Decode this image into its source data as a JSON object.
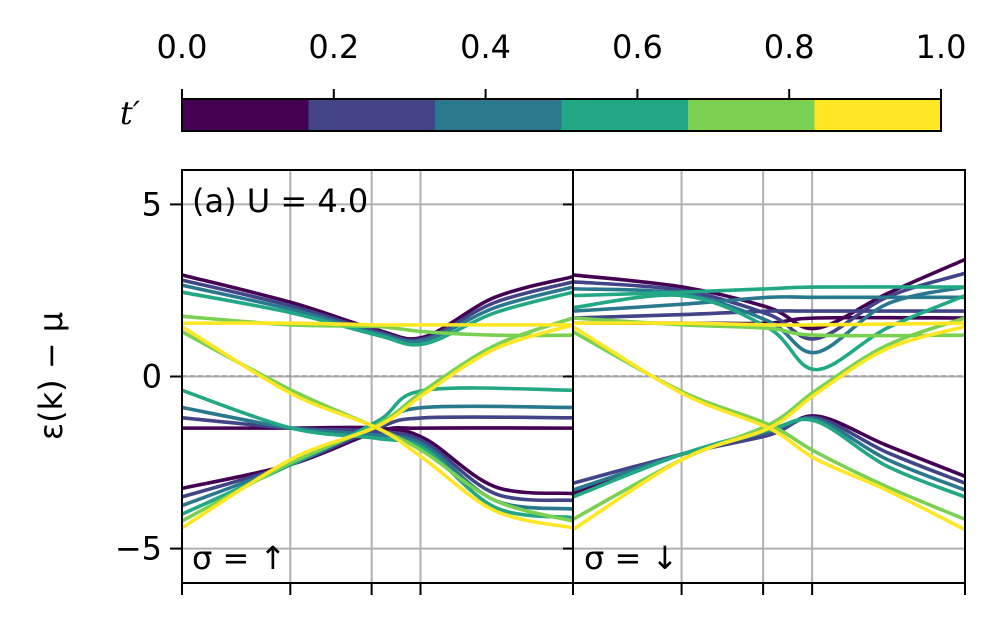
{
  "colorbar": {
    "label": "t′",
    "ticks": [
      "0.0",
      "0.2",
      "0.4",
      "0.6",
      "0.8",
      "1.0"
    ],
    "colors": [
      "#440154",
      "#414487",
      "#2a788e",
      "#22a884",
      "#7ad151",
      "#fde725"
    ]
  },
  "chart_data": [
    {
      "type": "line",
      "panel": "left",
      "ylabel": "ε(k) − μ",
      "ylim": [
        -6,
        6
      ],
      "yticks": [
        5,
        0,
        -5
      ],
      "xlim": [
        0,
        1
      ],
      "xticks": [
        0,
        0.277,
        0.485,
        0.61,
        1
      ],
      "grid": true,
      "annotation_top": "(a) U = 4.0",
      "annotation_bottom": "σ = ↑",
      "series": [
        {
          "param": 0.0,
          "color": "#440154",
          "bands": [
            [
              [
                0,
                2.95
              ],
              [
                0.28,
                2.15
              ],
              [
                0.5,
                1.35
              ],
              [
                0.62,
                1.15
              ],
              [
                0.8,
                2.3
              ],
              [
                1,
                2.9
              ]
            ],
            [
              [
                0,
                -3.25
              ],
              [
                0.28,
                -2.55
              ],
              [
                0.5,
                -1.6
              ],
              [
                0.62,
                -1.5
              ],
              [
                1,
                -1.5
              ]
            ],
            [
              [
                0,
                -1.5
              ],
              [
                0.28,
                -1.5
              ],
              [
                0.5,
                -1.5
              ],
              [
                0.62,
                -1.8
              ],
              [
                0.8,
                -3.2
              ],
              [
                1,
                -3.4
              ]
            ]
          ]
        },
        {
          "param": 0.2,
          "color": "#414487",
          "bands": [
            [
              [
                0,
                2.8
              ],
              [
                0.28,
                2.05
              ],
              [
                0.5,
                1.3
              ],
              [
                0.62,
                1.1
              ],
              [
                0.8,
                2.15
              ],
              [
                1,
                2.75
              ]
            ],
            [
              [
                0,
                -3.5
              ],
              [
                0.28,
                -2.55
              ],
              [
                0.5,
                -1.5
              ],
              [
                0.62,
                -1.2
              ],
              [
                1,
                -1.2
              ]
            ],
            [
              [
                0,
                -1.2
              ],
              [
                0.28,
                -1.5
              ],
              [
                0.5,
                -1.6
              ],
              [
                0.62,
                -1.9
              ],
              [
                0.8,
                -3.4
              ],
              [
                1,
                -3.6
              ]
            ]
          ]
        },
        {
          "param": 0.4,
          "color": "#2a788e",
          "bands": [
            [
              [
                0,
                2.65
              ],
              [
                0.28,
                1.95
              ],
              [
                0.5,
                1.25
              ],
              [
                0.62,
                1.05
              ],
              [
                0.8,
                2.0
              ],
              [
                1,
                2.6
              ]
            ],
            [
              [
                0,
                -3.75
              ],
              [
                0.28,
                -2.55
              ],
              [
                0.5,
                -1.4
              ],
              [
                0.62,
                -0.9
              ],
              [
                1,
                -0.9
              ]
            ],
            [
              [
                0,
                -0.9
              ],
              [
                0.28,
                -1.5
              ],
              [
                0.5,
                -1.7
              ],
              [
                0.62,
                -2.0
              ],
              [
                0.8,
                -3.6
              ],
              [
                1,
                -3.85
              ]
            ]
          ]
        },
        {
          "param": 0.6,
          "color": "#22a884",
          "bands": [
            [
              [
                0,
                2.45
              ],
              [
                0.28,
                1.85
              ],
              [
                0.5,
                1.2
              ],
              [
                0.62,
                0.95
              ],
              [
                0.8,
                1.85
              ],
              [
                1,
                2.45
              ]
            ],
            [
              [
                0,
                -4.0
              ],
              [
                0.28,
                -2.55
              ],
              [
                0.5,
                -1.3
              ],
              [
                0.62,
                -0.4
              ],
              [
                1,
                -0.4
              ]
            ],
            [
              [
                0,
                -0.4
              ],
              [
                0.28,
                -1.5
              ],
              [
                0.5,
                -1.8
              ],
              [
                0.62,
                -2.1
              ],
              [
                0.8,
                -3.8
              ],
              [
                1,
                -4.1
              ]
            ]
          ]
        },
        {
          "param": 0.8,
          "color": "#7ad151",
          "bands": [
            [
              [
                0,
                1.75
              ],
              [
                0.28,
                1.5
              ],
              [
                0.5,
                1.45
              ],
              [
                0.62,
                1.3
              ],
              [
                0.8,
                1.2
              ],
              [
                1,
                1.2
              ]
            ],
            [
              [
                0,
                1.3
              ],
              [
                0.28,
                -0.4
              ],
              [
                0.5,
                -1.5
              ],
              [
                0.62,
                -2.2
              ],
              [
                0.8,
                -3.6
              ],
              [
                1,
                -4.2
              ]
            ],
            [
              [
                0,
                -4.2
              ],
              [
                0.28,
                -2.5
              ],
              [
                0.5,
                -1.4
              ],
              [
                0.62,
                -0.4
              ],
              [
                0.8,
                0.9
              ],
              [
                1,
                1.7
              ]
            ]
          ]
        },
        {
          "param": 1.0,
          "color": "#fde725",
          "bands": [
            [
              [
                0,
                1.55
              ],
              [
                0.28,
                1.55
              ],
              [
                0.5,
                1.5
              ],
              [
                0.62,
                1.5
              ],
              [
                1,
                1.5
              ]
            ],
            [
              [
                0,
                1.45
              ],
              [
                0.28,
                -0.5
              ],
              [
                0.5,
                -1.5
              ],
              [
                0.62,
                -2.4
              ],
              [
                0.8,
                -3.9
              ],
              [
                1,
                -4.4
              ]
            ],
            [
              [
                0,
                -4.4
              ],
              [
                0.28,
                -2.4
              ],
              [
                0.5,
                -1.45
              ],
              [
                0.62,
                -0.5
              ],
              [
                0.8,
                0.8
              ],
              [
                1,
                1.5
              ]
            ]
          ]
        }
      ]
    },
    {
      "type": "line",
      "panel": "right",
      "ylim": [
        -6,
        6
      ],
      "xlim": [
        0,
        1
      ],
      "xticks": [
        0,
        0.277,
        0.485,
        0.61,
        1
      ],
      "grid": true,
      "annotation_bottom": "σ = ↓",
      "series": [
        {
          "param": 0.0,
          "color": "#440154",
          "bands": [
            [
              [
                0,
                2.95
              ],
              [
                0.28,
                2.6
              ],
              [
                0.5,
                2.0
              ],
              [
                0.62,
                1.4
              ],
              [
                0.8,
                2.4
              ],
              [
                1,
                3.4
              ]
            ],
            [
              [
                0,
                1.55
              ],
              [
                0.28,
                1.55
              ],
              [
                0.5,
                1.55
              ],
              [
                0.62,
                1.7
              ],
              [
                1,
                1.7
              ]
            ],
            [
              [
                0,
                -3.4
              ],
              [
                0.28,
                -2.25
              ],
              [
                0.5,
                -1.7
              ],
              [
                0.62,
                -1.15
              ],
              [
                0.8,
                -2.0
              ],
              [
                1,
                -2.9
              ]
            ]
          ]
        },
        {
          "param": 0.2,
          "color": "#414487",
          "bands": [
            [
              [
                0,
                2.75
              ],
              [
                0.28,
                2.5
              ],
              [
                0.5,
                1.8
              ],
              [
                0.62,
                1.1
              ],
              [
                0.8,
                2.3
              ],
              [
                1,
                3.0
              ]
            ],
            [
              [
                0,
                1.7
              ],
              [
                0.28,
                1.8
              ],
              [
                0.5,
                1.9
              ],
              [
                0.62,
                1.9
              ],
              [
                1,
                1.9
              ]
            ],
            [
              [
                0,
                -3.1
              ],
              [
                0.28,
                -2.25
              ],
              [
                0.5,
                -1.7
              ],
              [
                0.62,
                -1.2
              ],
              [
                0.8,
                -2.2
              ],
              [
                1,
                -3.1
              ]
            ]
          ]
        },
        {
          "param": 0.4,
          "color": "#2a788e",
          "bands": [
            [
              [
                0,
                2.55
              ],
              [
                0.28,
                2.4
              ],
              [
                0.5,
                1.6
              ],
              [
                0.62,
                0.7
              ],
              [
                0.8,
                2.1
              ],
              [
                1,
                2.6
              ]
            ],
            [
              [
                0,
                1.9
              ],
              [
                0.28,
                2.1
              ],
              [
                0.5,
                2.3
              ],
              [
                0.62,
                2.3
              ],
              [
                1,
                2.3
              ]
            ],
            [
              [
                0,
                -3.3
              ],
              [
                0.28,
                -2.25
              ],
              [
                0.5,
                -1.6
              ],
              [
                0.62,
                -1.25
              ],
              [
                0.8,
                -2.4
              ],
              [
                1,
                -3.3
              ]
            ]
          ]
        },
        {
          "param": 0.6,
          "color": "#22a884",
          "bands": [
            [
              [
                0,
                2.35
              ],
              [
                0.28,
                2.45
              ],
              [
                0.5,
                2.55
              ],
              [
                0.62,
                2.6
              ],
              [
                1,
                2.6
              ]
            ],
            [
              [
                0,
                2.0
              ],
              [
                0.28,
                2.35
              ],
              [
                0.5,
                1.4
              ],
              [
                0.62,
                0.2
              ],
              [
                0.8,
                1.4
              ],
              [
                1,
                2.35
              ]
            ],
            [
              [
                0,
                -3.5
              ],
              [
                0.28,
                -2.25
              ],
              [
                0.5,
                -1.55
              ],
              [
                0.62,
                -1.3
              ],
              [
                0.8,
                -2.6
              ],
              [
                1,
                -3.5
              ]
            ]
          ]
        },
        {
          "param": 0.8,
          "color": "#7ad151",
          "bands": [
            [
              [
                0,
                1.7
              ],
              [
                0.28,
                1.5
              ],
              [
                0.5,
                1.4
              ],
              [
                0.62,
                1.2
              ],
              [
                1,
                1.2
              ]
            ],
            [
              [
                0,
                1.3
              ],
              [
                0.28,
                -0.45
              ],
              [
                0.5,
                -1.4
              ],
              [
                0.62,
                -2.2
              ],
              [
                0.8,
                -3.2
              ],
              [
                1,
                -4.15
              ]
            ],
            [
              [
                0,
                -4.15
              ],
              [
                0.28,
                -2.4
              ],
              [
                0.5,
                -1.4
              ],
              [
                0.62,
                -0.4
              ],
              [
                0.8,
                0.9
              ],
              [
                1,
                1.7
              ]
            ]
          ]
        },
        {
          "param": 1.0,
          "color": "#fde725",
          "bands": [
            [
              [
                0,
                1.55
              ],
              [
                0.28,
                1.55
              ],
              [
                0.5,
                1.5
              ],
              [
                0.62,
                1.5
              ],
              [
                1,
                1.55
              ]
            ],
            [
              [
                0,
                1.45
              ],
              [
                0.28,
                -0.5
              ],
              [
                0.5,
                -1.5
              ],
              [
                0.62,
                -2.4
              ],
              [
                0.8,
                -3.3
              ],
              [
                1,
                -4.45
              ]
            ],
            [
              [
                0,
                -4.45
              ],
              [
                0.28,
                -2.4
              ],
              [
                0.5,
                -1.5
              ],
              [
                0.62,
                -0.5
              ],
              [
                0.8,
                0.8
              ],
              [
                1,
                1.45
              ]
            ]
          ]
        }
      ]
    }
  ]
}
